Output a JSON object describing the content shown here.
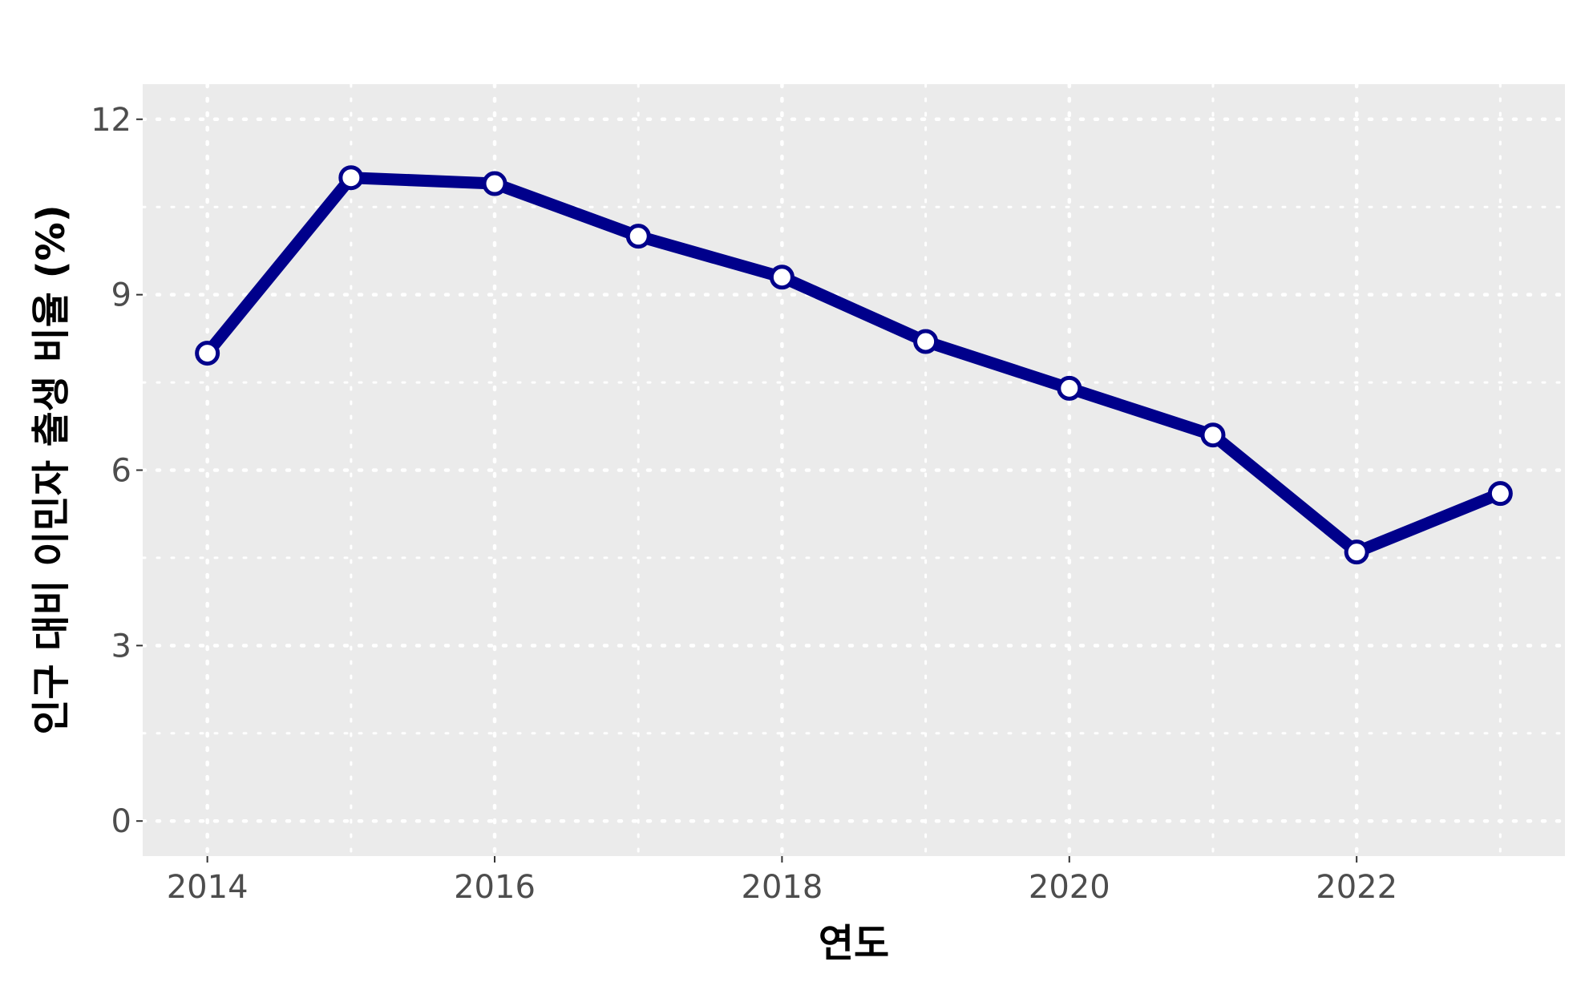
{
  "chart_data": {
    "type": "line",
    "title": "",
    "xlabel": "연도",
    "ylabel": "인구 대비 이민자 출생 비율 (%)",
    "x": [
      2014,
      2015,
      2016,
      2017,
      2018,
      2019,
      2020,
      2021,
      2022,
      2023
    ],
    "series": [
      {
        "values": [
          8.0,
          11.0,
          10.9,
          10.0,
          9.3,
          8.2,
          7.4,
          6.6,
          4.6,
          5.6
        ]
      }
    ],
    "xlim": [
      2013.55,
      2023.45
    ],
    "ylim": [
      -0.6,
      12.6
    ],
    "xticks": [
      "2014",
      "2016",
      "2018",
      "2020",
      "2022"
    ],
    "yticks": [
      "0",
      "3",
      "6",
      "9",
      "12"
    ],
    "grid": true,
    "legend": "none",
    "colors": {
      "line": "#00008b",
      "marker_fill": "#ffffff",
      "panel_background": "#ebebeb",
      "grid": "#ffffff"
    }
  }
}
